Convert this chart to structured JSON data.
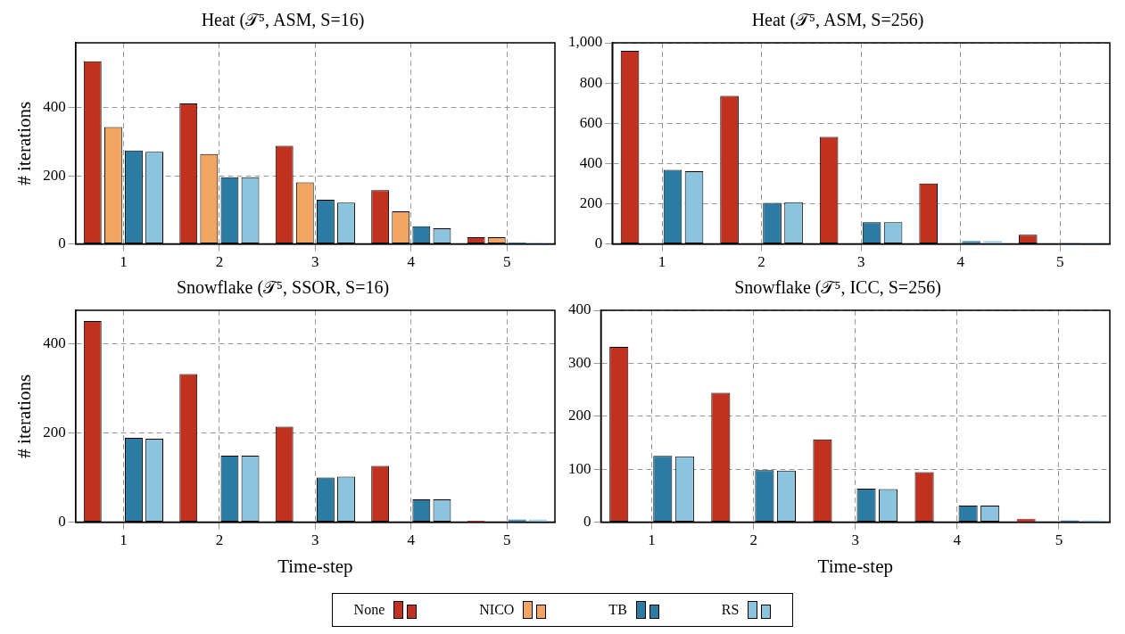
{
  "chart_data": [
    {
      "type": "bar",
      "title": "Heat (𝒯⁵, ASM, S=16)",
      "ylabel": "# iterations",
      "categories": [
        "1",
        "2",
        "3",
        "4",
        "5"
      ],
      "ylim": [
        0,
        590
      ],
      "yticks": [
        0,
        200,
        400
      ],
      "grid": true,
      "legend": "bottom",
      "series": [
        {
          "name": "None",
          "color": "#c0321f",
          "values": [
            536,
            412,
            288,
            158,
            20
          ]
        },
        {
          "name": "NICO",
          "color": "#f2a463",
          "values": [
            343,
            264,
            181,
            96,
            20
          ]
        },
        {
          "name": "TB",
          "color": "#2b7ba2",
          "values": [
            274,
            196,
            130,
            52,
            5
          ]
        },
        {
          "name": "RS",
          "color": "#8cc4de",
          "values": [
            270,
            196,
            121,
            46,
            5
          ]
        }
      ]
    },
    {
      "type": "bar",
      "title": "Heat (𝒯⁵, ASM, S=256)",
      "categories": [
        "1",
        "2",
        "3",
        "4",
        "5"
      ],
      "ylim": [
        0,
        1000
      ],
      "yticks": [
        0,
        200,
        400,
        600,
        800,
        {
          "value": 1000,
          "label": "1,000"
        }
      ],
      "grid": true,
      "series": [
        {
          "color": "#c0321f",
          "values": [
            960,
            736,
            532,
            301,
            46
          ]
        },
        {
          "color": "#f2a463",
          "values": [
            null,
            null,
            null,
            null,
            null
          ]
        },
        {
          "color": "#2b7ba2",
          "values": [
            368,
            204,
            108,
            15,
            5
          ]
        },
        {
          "color": "#8cc4de",
          "values": [
            362,
            208,
            108,
            15,
            5
          ]
        }
      ]
    },
    {
      "type": "bar",
      "title": "Snowflake (𝒯⁵, SSOR, S=16)",
      "xlabel": "Time-step",
      "ylabel": "# iterations",
      "categories": [
        "1",
        "2",
        "3",
        "4",
        "5"
      ],
      "ylim": [
        0,
        475
      ],
      "yticks": [
        0,
        200,
        400
      ],
      "grid": true,
      "series": [
        {
          "color": "#c0321f",
          "values": [
            451,
            332,
            214,
            126,
            3
          ]
        },
        {
          "color": "#f2a463",
          "values": [
            null,
            null,
            null,
            null,
            null
          ]
        },
        {
          "color": "#2b7ba2",
          "values": [
            189,
            149,
            100,
            51,
            6
          ]
        },
        {
          "color": "#8cc4de",
          "values": [
            187,
            149,
            102,
            51,
            6
          ]
        }
      ]
    },
    {
      "type": "bar",
      "title": "Snowflake (𝒯⁵, ICC, S=256)",
      "xlabel": "Time-step",
      "categories": [
        "1",
        "2",
        "3",
        "4",
        "5"
      ],
      "ylim": [
        0,
        400
      ],
      "yticks": [
        0,
        100,
        200,
        300,
        400
      ],
      "grid": true,
      "series": [
        {
          "color": "#c0321f",
          "values": [
            331,
            244,
            156,
            94,
            6
          ]
        },
        {
          "color": "#f2a463",
          "values": [
            null,
            null,
            null,
            null,
            null
          ]
        },
        {
          "color": "#2b7ba2",
          "values": [
            125,
            98,
            63,
            31,
            3
          ]
        },
        {
          "color": "#8cc4de",
          "values": [
            124,
            97,
            62,
            31,
            3
          ]
        }
      ]
    }
  ]
}
